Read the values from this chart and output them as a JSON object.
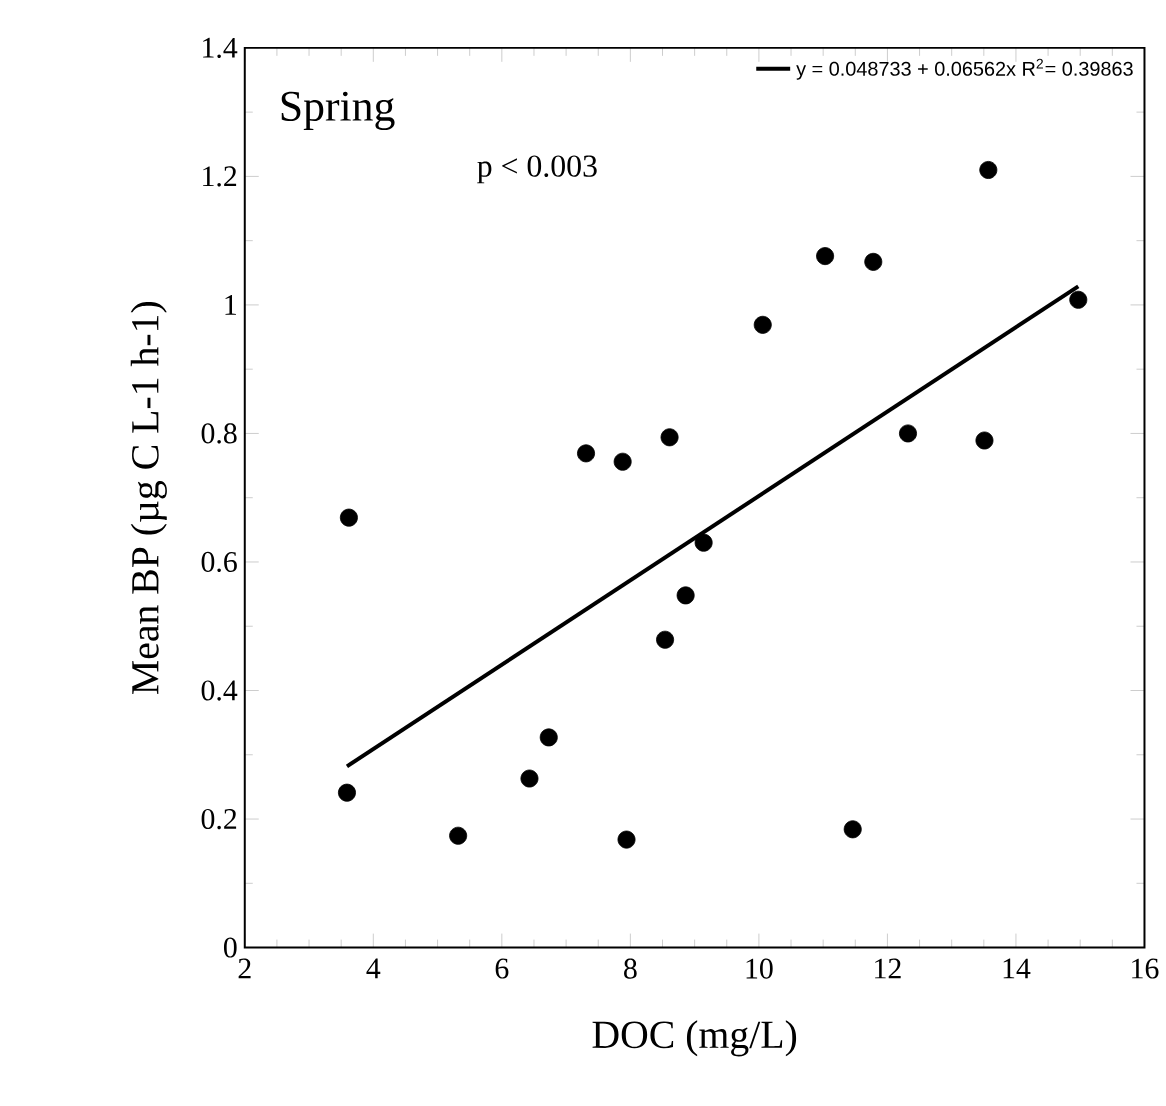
{
  "chart_data": {
    "type": "scatter",
    "xlabel": "DOC (mg/L)",
    "ylabel": "Mean BP (µg C L-1 h-1)",
    "annotations": [
      "Spring",
      "p < 0.003"
    ],
    "xlim": [
      2,
      16
    ],
    "ylim": [
      0,
      1.4
    ],
    "xticks": [
      2,
      4,
      6,
      8,
      10,
      12,
      14,
      16
    ],
    "yticks": [
      0,
      0.2,
      0.4,
      0.6,
      0.8,
      1,
      1.2,
      1.4
    ],
    "legend": "top right",
    "series": [
      {
        "color": "#000000",
        "marker": "circle",
        "x": [
          13.57,
          11.03,
          11.78,
          10.06,
          14.97,
          12.32,
          13.51,
          8.61,
          7.31,
          7.88,
          3.62,
          9.14,
          8.86,
          8.54,
          6.73,
          6.43,
          3.59,
          5.32,
          7.94,
          11.46
        ],
        "values": [
          1.21,
          1.076,
          1.067,
          0.969,
          1.008,
          0.8,
          0.789,
          0.794,
          0.769,
          0.756,
          0.669,
          0.63,
          0.548,
          0.479,
          0.327,
          0.263,
          0.241,
          0.174,
          0.168,
          0.184
        ]
      },
      {
        "type": "line",
        "name": "y = 0.048733 + 0.06562x   R$^{2}$= 0.39863",
        "color": "#000000",
        "marker": "none",
        "line_style": "solid",
        "x": [
          3.59,
          14.97
        ],
        "values": [
          0.282,
          1.029
        ]
      }
    ]
  }
}
